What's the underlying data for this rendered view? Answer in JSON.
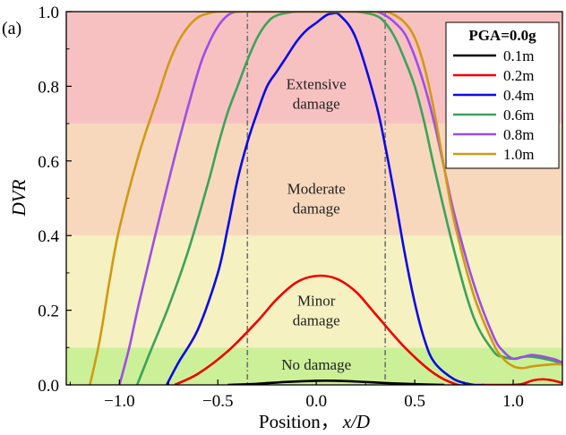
{
  "panel_label": "(a)",
  "chart_data": {
    "type": "line",
    "xlabel": "Position，",
    "xlabel_var": "x/D",
    "ylabel": "DVR",
    "xlim": [
      -1.27,
      1.25
    ],
    "ylim": [
      0,
      1.0
    ],
    "x_ticks": [
      -1.0,
      -0.5,
      0.0,
      0.5,
      1.0
    ],
    "x_tick_labels": [
      "−1.0",
      "−0.5",
      "0.0",
      "0.5",
      "1.0"
    ],
    "y_ticks": [
      0.0,
      0.2,
      0.4,
      0.6,
      0.8,
      1.0
    ],
    "y_tick_labels": [
      "0.0",
      "0.2",
      "0.4",
      "0.6",
      "0.8",
      "1.0"
    ],
    "vertical_dashdot_lines": [
      -0.35,
      0.35
    ],
    "damage_zones": [
      {
        "label_lines": [
          "No damage"
        ],
        "from": 0.0,
        "to": 0.1,
        "color": "#ccf098",
        "label_at": [
          0.0,
          0.055
        ]
      },
      {
        "label_lines": [
          "Minor",
          "damage"
        ],
        "from": 0.1,
        "to": 0.4,
        "color": "#f6f1c0",
        "label_at": [
          0.0,
          0.2
        ]
      },
      {
        "label_lines": [
          "Moderate",
          "damage"
        ],
        "from": 0.4,
        "to": 0.7,
        "color": "#f8d8bc",
        "label_at": [
          0.0,
          0.5
        ]
      },
      {
        "label_lines": [
          "Extensive",
          "damage"
        ],
        "from": 0.7,
        "to": 1.0,
        "color": "#f8c1c1",
        "label_at": [
          0.0,
          0.78
        ]
      }
    ],
    "legend": {
      "title": "PGA=0.0g",
      "position": "top-right"
    },
    "series": [
      {
        "name": "0.1m",
        "color": "#000000",
        "x": [
          -0.45,
          -0.3,
          -0.15,
          0.0,
          0.1,
          0.2,
          0.35,
          0.5,
          0.65
        ],
        "y": [
          0.0,
          0.003,
          0.008,
          0.011,
          0.011,
          0.009,
          0.005,
          0.002,
          0.0
        ]
      },
      {
        "name": "0.2m",
        "color": "#ee0000",
        "x": [
          -0.72,
          -0.6,
          -0.45,
          -0.3,
          -0.2,
          -0.1,
          0.0,
          0.1,
          0.2,
          0.3,
          0.45,
          0.6,
          0.72,
          0.8,
          0.9,
          1.0,
          1.05,
          1.1,
          1.15,
          1.2,
          1.25
        ],
        "y": [
          0.0,
          0.03,
          0.09,
          0.17,
          0.23,
          0.275,
          0.292,
          0.285,
          0.25,
          0.19,
          0.1,
          0.03,
          0.0,
          0.0,
          0.0,
          0.0,
          0.003,
          0.012,
          0.015,
          0.012,
          0.005
        ]
      },
      {
        "name": "0.4m",
        "color": "#0a0ae8",
        "x": [
          -0.76,
          -0.7,
          -0.6,
          -0.5,
          -0.45,
          -0.4,
          -0.35,
          -0.3,
          -0.25,
          -0.2,
          -0.15,
          -0.1,
          -0.05,
          0.0,
          0.05,
          0.08,
          0.12,
          0.2,
          0.3,
          0.35,
          0.4,
          0.45,
          0.5,
          0.55,
          0.6,
          0.7,
          0.8,
          0.85
        ],
        "y": [
          0.0,
          0.06,
          0.15,
          0.3,
          0.42,
          0.55,
          0.65,
          0.73,
          0.8,
          0.84,
          0.88,
          0.92,
          0.95,
          0.97,
          0.99,
          0.995,
          0.99,
          0.93,
          0.76,
          0.64,
          0.5,
          0.35,
          0.22,
          0.12,
          0.06,
          0.015,
          0.0,
          0.0
        ]
      },
      {
        "name": "0.6m",
        "color": "#3aa35a",
        "x": [
          -0.91,
          -0.85,
          -0.75,
          -0.65,
          -0.55,
          -0.5,
          -0.45,
          -0.4,
          -0.35,
          -0.3,
          -0.25,
          -0.2,
          -0.1,
          0.0,
          0.1,
          0.2,
          0.3,
          0.35,
          0.4,
          0.45,
          0.5,
          0.55,
          0.6,
          0.7,
          0.8,
          0.9,
          0.95,
          1.0,
          1.05,
          1.1,
          1.2,
          1.25
        ],
        "y": [
          0.0,
          0.08,
          0.21,
          0.36,
          0.54,
          0.64,
          0.73,
          0.8,
          0.87,
          0.93,
          0.97,
          0.99,
          1.0,
          1.0,
          1.0,
          1.0,
          0.99,
          0.97,
          0.93,
          0.87,
          0.8,
          0.7,
          0.58,
          0.36,
          0.18,
          0.09,
          0.075,
          0.07,
          0.075,
          0.075,
          0.065,
          0.055
        ]
      },
      {
        "name": "0.8m",
        "color": "#9d4de8",
        "x": [
          -1.0,
          -0.95,
          -0.9,
          -0.8,
          -0.7,
          -0.6,
          -0.55,
          -0.5,
          -0.45,
          -0.4,
          -0.3,
          -0.2,
          -0.1,
          0.0,
          0.1,
          0.2,
          0.3,
          0.35,
          0.4,
          0.45,
          0.5,
          0.55,
          0.6,
          0.65,
          0.7,
          0.8,
          0.9,
          0.95,
          1.0,
          1.05,
          1.1,
          1.2,
          1.25
        ],
        "y": [
          0.0,
          0.1,
          0.22,
          0.44,
          0.65,
          0.84,
          0.91,
          0.96,
          0.99,
          1.0,
          1.0,
          1.0,
          1.0,
          1.0,
          1.0,
          1.0,
          1.0,
          0.99,
          0.97,
          0.94,
          0.88,
          0.8,
          0.7,
          0.58,
          0.46,
          0.27,
          0.13,
          0.09,
          0.07,
          0.075,
          0.08,
          0.07,
          0.06
        ]
      },
      {
        "name": "1.0m",
        "color": "#cf9a14",
        "x": [
          -1.15,
          -1.1,
          -1.05,
          -1.0,
          -0.9,
          -0.8,
          -0.75,
          -0.7,
          -0.65,
          -0.6,
          -0.55,
          -0.5,
          -0.4,
          -0.3,
          -0.2,
          -0.1,
          0.0,
          0.1,
          0.2,
          0.3,
          0.35,
          0.4,
          0.45,
          0.5,
          0.55,
          0.6,
          0.65,
          0.7,
          0.8,
          0.9,
          0.95,
          1.0,
          1.05,
          1.1,
          1.2,
          1.25
        ],
        "y": [
          0.0,
          0.12,
          0.28,
          0.42,
          0.62,
          0.78,
          0.86,
          0.92,
          0.96,
          0.985,
          0.995,
          1.0,
          1.0,
          1.0,
          1.0,
          1.0,
          1.0,
          1.0,
          1.0,
          1.0,
          1.0,
          0.99,
          0.97,
          0.93,
          0.85,
          0.73,
          0.58,
          0.44,
          0.24,
          0.11,
          0.07,
          0.05,
          0.045,
          0.05,
          0.055,
          0.055
        ]
      }
    ]
  }
}
